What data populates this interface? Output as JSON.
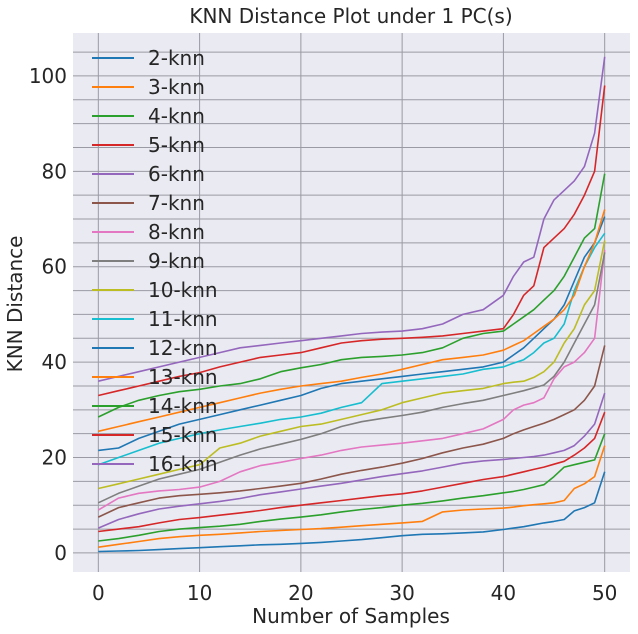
{
  "chart_data": {
    "type": "line",
    "title": "KNN Distance Plot under 1 PC(s)",
    "xlabel": "Number of Samples",
    "ylabel": "KNN Distance",
    "xlim": [
      -2.5,
      52.5
    ],
    "ylim": [
      -4,
      109
    ],
    "xticks": [
      0,
      10,
      20,
      30,
      40,
      50
    ],
    "yticks": [
      0,
      20,
      40,
      60,
      80,
      100
    ],
    "ygrid_minor_step": 5,
    "grid": true,
    "legend_position": "top-left",
    "x": [
      0,
      2,
      4,
      6,
      8,
      10,
      12,
      14,
      16,
      18,
      20,
      22,
      24,
      26,
      28,
      30,
      32,
      34,
      36,
      38,
      40,
      41,
      42,
      43,
      44,
      45,
      46,
      47,
      48,
      49,
      50
    ],
    "series": [
      {
        "name": "2-knn",
        "color": "#1f77b4",
        "values": [
          0.3,
          0.4,
          0.5,
          0.7,
          0.9,
          1.1,
          1.3,
          1.5,
          1.7,
          1.8,
          2.0,
          2.2,
          2.5,
          2.8,
          3.2,
          3.6,
          3.9,
          4.0,
          4.2,
          4.4,
          4.9,
          5.2,
          5.5,
          5.9,
          6.3,
          6.6,
          7.0,
          8.8,
          9.5,
          10.5,
          17.0
        ]
      },
      {
        "name": "3-knn",
        "color": "#ff7f0e",
        "values": [
          1.2,
          1.8,
          2.4,
          3.0,
          3.4,
          3.7,
          3.9,
          4.2,
          4.5,
          4.7,
          4.9,
          5.1,
          5.4,
          5.7,
          6.0,
          6.3,
          6.6,
          8.6,
          9.0,
          9.2,
          9.4,
          9.6,
          9.9,
          10.1,
          10.3,
          10.5,
          11.0,
          13.5,
          14.5,
          16.0,
          22.5
        ]
      },
      {
        "name": "4-knn",
        "color": "#2ca02c",
        "values": [
          2.5,
          3.0,
          3.7,
          4.5,
          5.0,
          5.3,
          5.6,
          6.0,
          6.6,
          7.1,
          7.5,
          8.0,
          8.6,
          9.1,
          9.5,
          10.0,
          10.4,
          10.9,
          11.5,
          12.0,
          12.6,
          12.9,
          13.3,
          13.8,
          14.3,
          16.0,
          18.0,
          18.5,
          19.0,
          19.5,
          25.0
        ]
      },
      {
        "name": "5-knn",
        "color": "#d62728",
        "values": [
          4.5,
          5.0,
          5.5,
          6.3,
          7.0,
          7.4,
          7.9,
          8.4,
          8.9,
          9.5,
          10.0,
          10.5,
          11.0,
          11.5,
          12.0,
          12.4,
          13.0,
          13.8,
          14.6,
          15.4,
          16.0,
          16.5,
          17.0,
          17.5,
          18.0,
          18.6,
          19.2,
          20.5,
          22.0,
          24.0,
          29.5
        ]
      },
      {
        "name": "6-knn",
        "color": "#9467bd",
        "values": [
          5.2,
          7.0,
          8.2,
          9.2,
          9.8,
          10.3,
          10.8,
          11.4,
          12.2,
          12.8,
          13.4,
          14.0,
          14.6,
          15.3,
          16.0,
          16.6,
          17.2,
          18.0,
          18.8,
          19.3,
          19.6,
          19.8,
          20.0,
          20.2,
          20.5,
          21.0,
          21.5,
          22.5,
          24.5,
          27.0,
          33.5
        ]
      },
      {
        "name": "7-knn",
        "color": "#8c564b",
        "values": [
          7.5,
          9.5,
          10.5,
          11.5,
          12.0,
          12.3,
          12.6,
          13.0,
          13.5,
          14.0,
          14.6,
          15.5,
          16.5,
          17.3,
          18.0,
          18.8,
          19.8,
          21.0,
          22.0,
          22.8,
          24.0,
          25.0,
          25.8,
          26.5,
          27.2,
          28.0,
          29.0,
          30.0,
          32.0,
          35.0,
          43.5
        ]
      },
      {
        "name": "8-knn",
        "color": "#e377c2",
        "values": [
          9.0,
          11.5,
          12.5,
          13.0,
          13.3,
          13.8,
          15.0,
          17.0,
          18.3,
          19.0,
          19.8,
          20.5,
          21.5,
          22.2,
          22.6,
          23.0,
          23.5,
          24.0,
          25.0,
          26.0,
          28.0,
          30.0,
          31.0,
          31.5,
          32.5,
          36.5,
          39.0,
          40.0,
          42.0,
          45.0,
          63.5
        ]
      },
      {
        "name": "9-knn",
        "color": "#7f7f7f",
        "values": [
          10.5,
          12.5,
          14.0,
          15.5,
          16.5,
          17.5,
          19.0,
          20.5,
          21.8,
          22.8,
          23.8,
          25.0,
          26.5,
          27.5,
          28.2,
          28.8,
          29.5,
          30.5,
          31.3,
          32.0,
          33.0,
          33.5,
          34.0,
          34.6,
          35.2,
          37.0,
          40.0,
          44.0,
          48.0,
          52.0,
          63.0
        ]
      },
      {
        "name": "10-knn",
        "color": "#bcbd22",
        "values": [
          13.5,
          14.5,
          15.5,
          16.5,
          17.5,
          18.5,
          22.0,
          23.0,
          24.5,
          25.5,
          26.5,
          27.0,
          28.0,
          29.0,
          30.0,
          31.5,
          32.5,
          33.5,
          34.0,
          34.5,
          35.5,
          35.8,
          36.0,
          36.8,
          38.0,
          40.0,
          44.0,
          47.0,
          52.0,
          55.0,
          65.5
        ]
      },
      {
        "name": "11-knn",
        "color": "#17becf",
        "values": [
          18.5,
          20.0,
          21.5,
          23.0,
          24.0,
          25.0,
          25.8,
          26.5,
          27.2,
          28.0,
          28.5,
          29.3,
          30.5,
          31.5,
          35.5,
          36.0,
          36.5,
          37.0,
          37.5,
          38.5,
          39.0,
          39.8,
          40.5,
          42.0,
          44.0,
          45.0,
          48.0,
          55.0,
          60.0,
          64.0,
          67.0
        ]
      },
      {
        "name": "12-knn",
        "color": "#1f77b4",
        "values": [
          21.5,
          22.0,
          24.0,
          25.5,
          27.0,
          28.0,
          29.0,
          30.0,
          31.0,
          32.0,
          33.0,
          34.5,
          35.5,
          36.0,
          36.5,
          37.0,
          37.5,
          38.0,
          38.5,
          39.0,
          40.0,
          41.5,
          43.0,
          45.0,
          47.0,
          49.0,
          52.0,
          57.0,
          62.0,
          65.0,
          70.5
        ]
      },
      {
        "name": "13-knn",
        "color": "#ff7f0e",
        "values": [
          25.5,
          26.5,
          27.5,
          28.5,
          29.5,
          30.5,
          31.5,
          32.5,
          33.5,
          34.3,
          35.0,
          35.5,
          36.0,
          36.8,
          37.5,
          38.5,
          39.5,
          40.5,
          41.0,
          41.5,
          42.5,
          43.5,
          44.5,
          46.0,
          47.5,
          49.0,
          51.0,
          54.0,
          60.0,
          65.0,
          72.0
        ]
      },
      {
        "name": "14-knn",
        "color": "#2ca02c",
        "values": [
          28.5,
          30.5,
          32.0,
          33.0,
          33.8,
          34.3,
          35.0,
          35.5,
          36.5,
          38.0,
          38.8,
          39.5,
          40.5,
          41.0,
          41.2,
          41.5,
          42.0,
          43.0,
          45.0,
          46.0,
          46.5,
          48.0,
          49.5,
          51.0,
          53.0,
          55.0,
          58.0,
          62.0,
          66.0,
          68.0,
          79.5
        ]
      },
      {
        "name": "15-knn",
        "color": "#d62728",
        "values": [
          33.0,
          34.0,
          35.0,
          36.0,
          37.0,
          37.8,
          39.0,
          40.0,
          41.0,
          41.5,
          42.0,
          43.0,
          44.0,
          44.5,
          44.8,
          45.0,
          45.2,
          45.5,
          46.0,
          46.5,
          47.0,
          50.0,
          54.0,
          56.0,
          64.0,
          66.0,
          68.0,
          71.0,
          75.0,
          80.0,
          98.0
        ]
      },
      {
        "name": "16-knn",
        "color": "#9467bd",
        "values": [
          36.0,
          37.0,
          38.0,
          39.0,
          40.0,
          41.0,
          42.0,
          43.0,
          43.5,
          44.0,
          44.5,
          45.0,
          45.5,
          46.0,
          46.3,
          46.5,
          47.0,
          48.0,
          50.0,
          51.0,
          54.0,
          58.0,
          61.0,
          62.0,
          70.0,
          74.0,
          76.0,
          78.0,
          81.0,
          88.0,
          104.0
        ]
      }
    ]
  }
}
